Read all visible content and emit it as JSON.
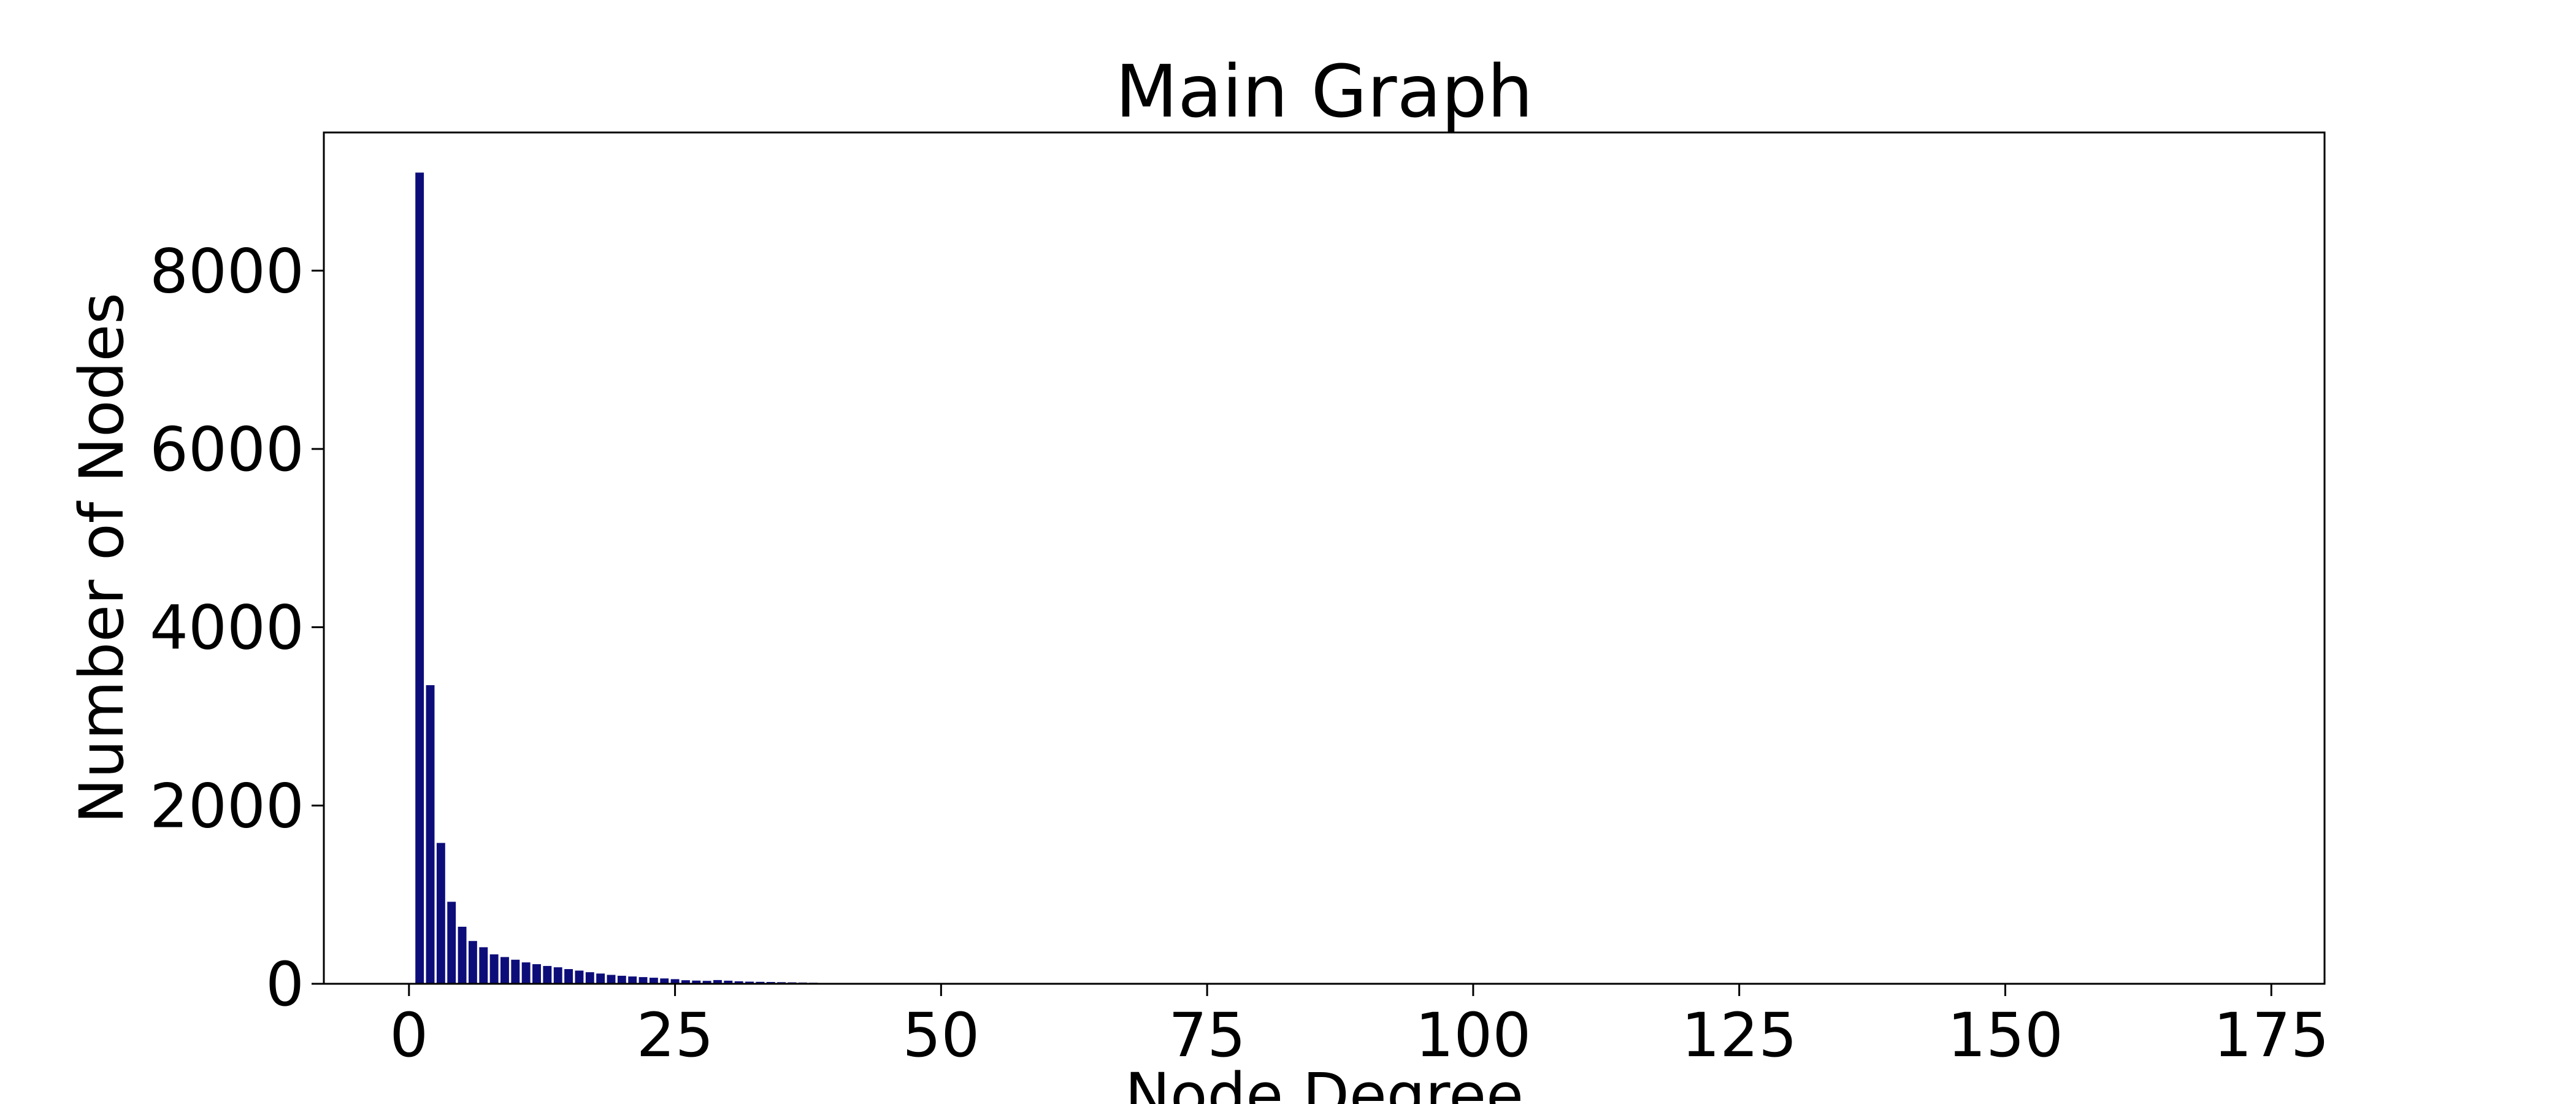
{
  "chart_data": {
    "type": "bar",
    "title": "Main Graph",
    "xlabel": "Node Degree",
    "ylabel": "Number of Nodes",
    "xlim": [
      -8,
      180
    ],
    "ylim": [
      0,
      9550
    ],
    "xticks": [
      0,
      25,
      50,
      75,
      100,
      125,
      150,
      175
    ],
    "yticks": [
      0,
      2000,
      4000,
      6000,
      8000
    ],
    "bar_color": "#0d0d7a",
    "grid": false,
    "legend": "none",
    "x": [
      1,
      2,
      3,
      4,
      5,
      6,
      7,
      8,
      9,
      10,
      11,
      12,
      13,
      14,
      15,
      16,
      17,
      18,
      19,
      20,
      21,
      22,
      23,
      24,
      25,
      26,
      27,
      28,
      29,
      30,
      31,
      32,
      33,
      34,
      35,
      36,
      37,
      38,
      39,
      40,
      41,
      42,
      43,
      44,
      45
    ],
    "values": [
      9100,
      3350,
      1580,
      920,
      640,
      480,
      410,
      330,
      300,
      270,
      240,
      220,
      200,
      185,
      165,
      148,
      130,
      115,
      100,
      90,
      82,
      75,
      68,
      60,
      52,
      40,
      36,
      33,
      42,
      35,
      28,
      24,
      22,
      20,
      18,
      16,
      14,
      12,
      10,
      9,
      8,
      7,
      6,
      5,
      4
    ]
  }
}
